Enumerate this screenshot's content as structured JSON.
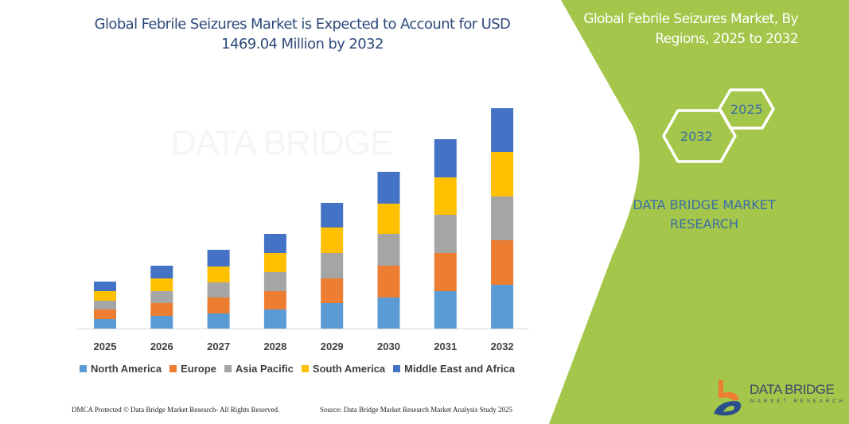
{
  "title": "Global Febrile Seizures Market is Expected to Account for USD 1469.04 Million by 2032",
  "side_panel": {
    "title_line1": "Global Febrile Seizures Market, By",
    "title_line2": "Regions, 2025 to 2032",
    "hex_start": "2025",
    "hex_end": "2032",
    "brand_line1": "DATA BRIDGE MARKET",
    "brand_line2": "RESEARCH",
    "color": "#a4c64a"
  },
  "logo": {
    "name": "DATA BRIDGE",
    "sub": "MARKET RESEARCH"
  },
  "watermark": "DATA BRIDGE",
  "footer": {
    "left": "DMCA Protected © Data Bridge Market Research-  All Rights Reserved.",
    "right": "Source: Data Bridge Market Research  Market Analysis Study 2025"
  },
  "chart_data": {
    "type": "bar",
    "stacked": true,
    "title": "Global Febrile Seizures Market is Expected to Account for USD 1469.04 Million by 2032",
    "categories": [
      "2025",
      "2026",
      "2027",
      "2028",
      "2029",
      "2030",
      "2031",
      "2032"
    ],
    "series": [
      {
        "name": "North America",
        "color": "#5b9bd5",
        "values": [
          12,
          16,
          19,
          24,
          32,
          39,
          47,
          55
        ]
      },
      {
        "name": "Europe",
        "color": "#ed7d31",
        "values": [
          12,
          16,
          20,
          23,
          31,
          40,
          48,
          56
        ]
      },
      {
        "name": "Asia Pacific",
        "color": "#a5a5a5",
        "values": [
          11,
          15,
          19,
          24,
          32,
          40,
          48,
          55
        ]
      },
      {
        "name": "South America",
        "color": "#ffc000",
        "values": [
          12,
          16,
          20,
          24,
          32,
          38,
          47,
          56
        ]
      },
      {
        "name": "Middle East and Africa",
        "color": "#4472c4",
        "values": [
          12,
          16,
          21,
          24,
          31,
          40,
          48,
          55
        ]
      }
    ],
    "y_axis_shown": false,
    "grid": false,
    "legend_position": "bottom"
  }
}
